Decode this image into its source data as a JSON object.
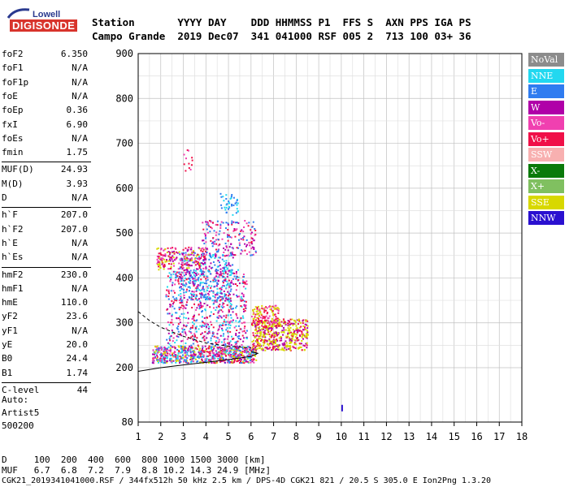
{
  "logo": {
    "line1": "Lowell",
    "line2": "DIGISONDE"
  },
  "header": {
    "row1": "Station       YYYY DAY    DDD HHMMSS P1  FFS S  AXN PPS IGA PS",
    "row2": "Campo Grande  2019 Dec07  341 041000 RSF 005 2  713 100 03+ 36"
  },
  "params": [
    {
      "name": "foF2",
      "value": "6.350"
    },
    {
      "name": "foF1",
      "value": "N/A"
    },
    {
      "name": "foF1p",
      "value": "N/A"
    },
    {
      "name": "foE",
      "value": "N/A"
    },
    {
      "name": "foEp",
      "value": "0.36"
    },
    {
      "name": "fxI",
      "value": "6.90"
    },
    {
      "name": "foEs",
      "value": "N/A"
    },
    {
      "name": "fmin",
      "value": "1.75"
    },
    {
      "name": "MUF(D)",
      "value": "24.93"
    },
    {
      "name": "M(D)",
      "value": "3.93"
    },
    {
      "name": "D",
      "value": "N/A"
    },
    {
      "name": "h`F",
      "value": "207.0"
    },
    {
      "name": "h`F2",
      "value": "207.0"
    },
    {
      "name": "h`E",
      "value": "N/A"
    },
    {
      "name": "h`Es",
      "value": "N/A"
    },
    {
      "name": "hmF2",
      "value": "230.0"
    },
    {
      "name": "hmF1",
      "value": "N/A"
    },
    {
      "name": "hmE",
      "value": "110.0"
    },
    {
      "name": "yF2",
      "value": "23.6"
    },
    {
      "name": "yF1",
      "value": "N/A"
    },
    {
      "name": "yE",
      "value": "20.0"
    },
    {
      "name": "B0",
      "value": "24.4"
    },
    {
      "name": "B1",
      "value": "1.74"
    },
    {
      "name": "C-level",
      "value": "44"
    }
  ],
  "auto": {
    "line1": "Auto:",
    "line2": "Artist5",
    "line3": "500200"
  },
  "legend": [
    {
      "label": "NoVal",
      "color": "#8c8c8c",
      "text": "#ffffff"
    },
    {
      "label": "NNE",
      "color": "#22d8f0",
      "text": "#ffffff"
    },
    {
      "label": "E",
      "color": "#2f7cf0",
      "text": "#ffffff"
    },
    {
      "label": "W",
      "color": "#b000a8",
      "text": "#ffffff"
    },
    {
      "label": "Vo-",
      "color": "#f040b0",
      "text": "#ffffff"
    },
    {
      "label": "Vo+",
      "color": "#f01048",
      "text": "#ffffff"
    },
    {
      "label": "SSW",
      "color": "#f8b0b0",
      "text": "#ffffff"
    },
    {
      "label": "X-",
      "color": "#0a7a0a",
      "text": "#ffffff"
    },
    {
      "label": "X+",
      "color": "#80c060",
      "text": "#ffffff"
    },
    {
      "label": "SSE",
      "color": "#d8d800",
      "text": "#ffffff"
    },
    {
      "label": "NNW",
      "color": "#2a10d0",
      "text": "#ffffff"
    }
  ],
  "chart_data": {
    "type": "scatter",
    "x_ticks": [
      "1",
      "2",
      "3",
      "4",
      "5",
      "6",
      "7",
      "8",
      "9",
      "10",
      "11",
      "12",
      "13",
      "14",
      "15",
      "16",
      "17",
      "18"
    ],
    "y_ticks": [
      "900",
      "800",
      "700",
      "600",
      "500",
      "400",
      "300",
      "200",
      "80"
    ],
    "xlim": [
      1,
      18
    ],
    "ylim": [
      80,
      900
    ]
  },
  "bottom": {
    "row1": "D     100  200  400  600  800 1000 1500 3000 [km]",
    "row2": "MUF   6.7  6.8  7.2  7.9  8.8 10.2 14.3 24.9 [MHz]",
    "footer": "CGK21_2019341041000.RSF / 344fx512h 50 kHz 2.5 km / DPS-4D CGK21 821 / 20.5 S 305.0 E Ion2Png 1.3.20"
  }
}
